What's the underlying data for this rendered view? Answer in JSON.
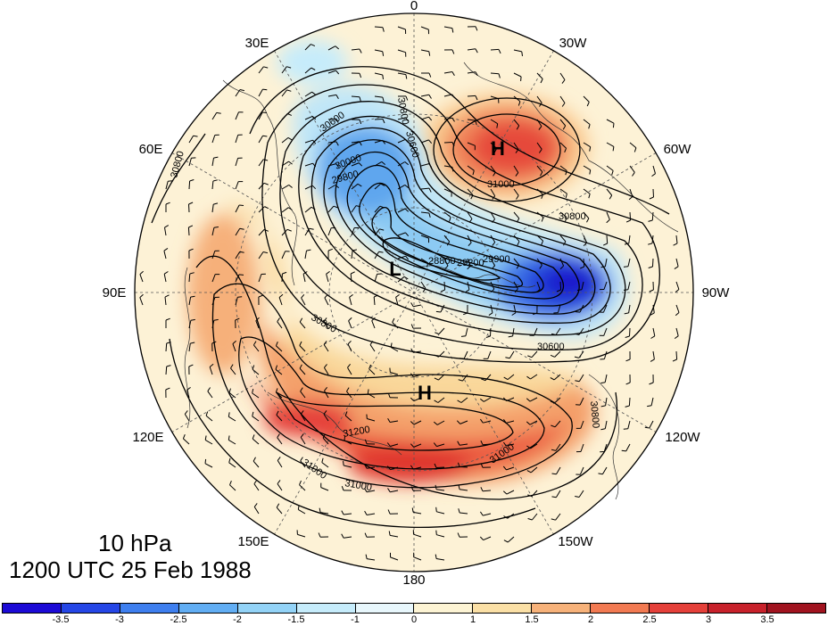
{
  "map": {
    "center": "North Pole",
    "projection": "polar stereographic",
    "longitude_labels": [
      "0",
      "30W",
      "60W",
      "90W",
      "120W",
      "150W",
      "180",
      "150E",
      "120E",
      "90E",
      "60E",
      "30E"
    ]
  },
  "info": {
    "level": "10 hPa",
    "time": "1200 UTC 25 Feb 1988"
  },
  "pressure_centers": [
    {
      "label": "H",
      "name": "high-north-atlantic"
    },
    {
      "label": "H",
      "name": "high-north-pacific"
    },
    {
      "label": "L",
      "name": "low-siberia"
    }
  ],
  "contour_labels": [
    "30800",
    "30600",
    "30600",
    "30000",
    "29800",
    "28800",
    "29200",
    "29900",
    "30800",
    "31000",
    "30800",
    "30600",
    "31200",
    "31000",
    "31000",
    "31000",
    "30800",
    "30800"
  ],
  "colorbar": {
    "labels": [
      "-3.5",
      "-3",
      "-2.5",
      "-2",
      "-1.5",
      "-1",
      "0",
      "1",
      "1.5",
      "2",
      "2.5",
      "3",
      "3.5"
    ],
    "colors": [
      "#1c0ad6",
      "#2546e6",
      "#3e7fef",
      "#62aef4",
      "#93d3f7",
      "#c6ecfb",
      "#e8f7fc",
      "#fdf4d4",
      "#fbe0a6",
      "#f7b27a",
      "#f27a52",
      "#e5403a",
      "#c8212b",
      "#a1131f"
    ]
  },
  "colors": {
    "background": "#fdf2d6",
    "contour": "#000000"
  }
}
